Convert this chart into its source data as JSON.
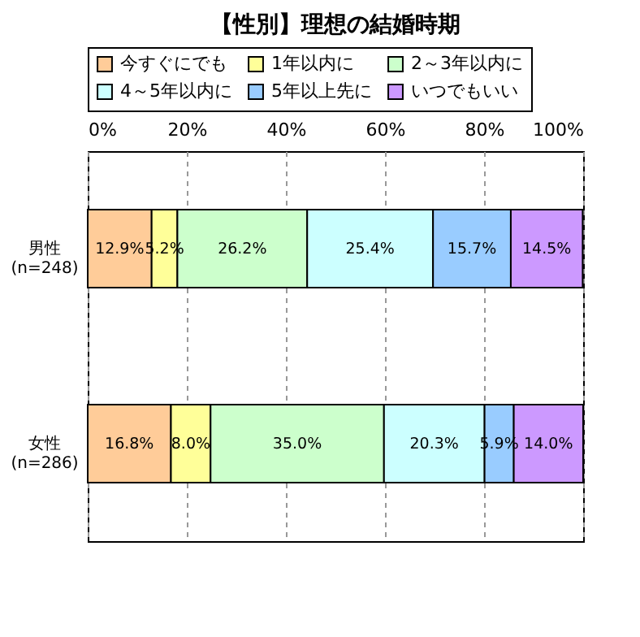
{
  "chart_data": {
    "type": "bar",
    "orientation": "horizontal",
    "stacked": true,
    "title": "【性別】理想の結婚時期",
    "categories": [
      "男性\n(n=248)",
      "女性\n(n=286)"
    ],
    "series": [
      {
        "name": "今すぐにでも",
        "color": "#ffcc99",
        "values": [
          12.9,
          16.8
        ],
        "value_labels": [
          "12.9%",
          "16.8%"
        ]
      },
      {
        "name": "1年以内に",
        "color": "#ffff99",
        "values": [
          5.2,
          8.0
        ],
        "value_labels": [
          "5.2%",
          "8.0%"
        ]
      },
      {
        "name": "2～3年以内に",
        "color": "#ccffcc",
        "values": [
          26.2,
          35.0
        ],
        "value_labels": [
          "26.2%",
          "35.0%"
        ]
      },
      {
        "name": "4～5年以内に",
        "color": "#ccffff",
        "values": [
          25.4,
          20.3
        ],
        "value_labels": [
          "25.4%",
          "20.3%"
        ]
      },
      {
        "name": "5年以上先に",
        "color": "#99ccff",
        "values": [
          15.7,
          5.9
        ],
        "value_labels": [
          "15.7%",
          "5.9%"
        ]
      },
      {
        "name": "いつでもいい",
        "color": "#cc99ff",
        "values": [
          14.5,
          14.0
        ],
        "value_labels": [
          "14.5%",
          "14.0%"
        ]
      }
    ],
    "xlim": [
      0,
      100
    ],
    "xticks": [
      {
        "value": 0,
        "label": "0%"
      },
      {
        "value": 20,
        "label": "20%"
      },
      {
        "value": 40,
        "label": "40%"
      },
      {
        "value": 60,
        "label": "60%"
      },
      {
        "value": 80,
        "label": "80%"
      },
      {
        "value": 100,
        "label": "100%"
      }
    ],
    "grid": "x",
    "legend": "top"
  }
}
